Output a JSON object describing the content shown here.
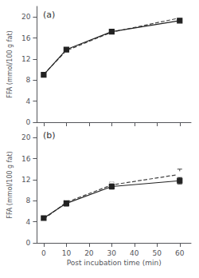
{
  "chart_data": [
    {
      "type": "line",
      "annotation": "(a)",
      "ylabel": "FFA (mmol/100 g fat)",
      "x": [
        0,
        10,
        30,
        60
      ],
      "series": [
        {
          "color": "#444444",
          "marker": "circle",
          "line_style": "dashed",
          "values": [
            9.1,
            13.6,
            17.1,
            19.8
          ],
          "yerr": [
            0.15,
            0.15,
            0.15,
            0.2
          ]
        },
        {
          "color": "#222222",
          "marker": "square",
          "line_style": "solid",
          "values": [
            9.0,
            13.8,
            17.2,
            19.3
          ],
          "yerr": [
            0.15,
            0.15,
            0.15,
            0.2
          ]
        }
      ],
      "xlim": [
        -3,
        65
      ],
      "xticks": [
        0,
        10,
        20,
        30,
        40,
        50,
        60
      ],
      "ylim": [
        0,
        22
      ],
      "yticks": [
        0,
        4,
        8,
        12,
        16,
        20
      ],
      "grid": false,
      "tick_labels": "y"
    },
    {
      "type": "line",
      "annotation": "(b)",
      "ylabel": "FFA (mmol/100 g fat)",
      "xlabel": "Post incubation time (min)",
      "x": [
        0,
        10,
        30,
        60
      ],
      "series": [
        {
          "color": "#444444",
          "marker": "circle",
          "line_style": "dashed",
          "values": [
            4.5,
            7.7,
            11.0,
            13.0
          ],
          "yerr": [
            0.3,
            0.4,
            0.5,
            1.0
          ]
        },
        {
          "color": "#222222",
          "marker": "square",
          "line_style": "solid",
          "values": [
            4.7,
            7.5,
            10.7,
            11.8
          ],
          "yerr": [
            0.3,
            0.5,
            0.5,
            0.6
          ]
        }
      ],
      "xlim": [
        -3,
        65
      ],
      "xticks": [
        0,
        10,
        20,
        30,
        40,
        50,
        60
      ],
      "ylim": [
        0,
        22
      ],
      "yticks": [
        0,
        4,
        8,
        12,
        16,
        20
      ],
      "grid": false
    }
  ]
}
